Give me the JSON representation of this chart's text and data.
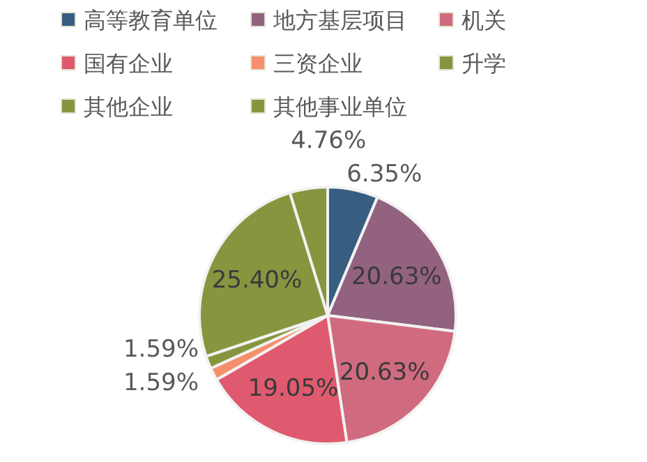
{
  "chart_data": {
    "type": "pie",
    "categories": [
      "高等教育单位",
      "地方基层项目",
      "机关",
      "国有企业",
      "三资企业",
      "升学",
      "其他企业",
      "其他事业单位"
    ],
    "values": [
      6.35,
      20.63,
      20.63,
      19.05,
      1.59,
      1.59,
      25.4,
      4.76
    ],
    "colors": [
      "#375d81",
      "#93627f",
      "#d06b7f",
      "#df5a6e",
      "#f68f6c",
      "#86963f",
      "#86963f",
      "#86963f"
    ],
    "value_labels": [
      "6.35%",
      "20.63%",
      "20.63%",
      "19.05%",
      "1.59%",
      "1.59%",
      "25.40%",
      "4.76%"
    ],
    "legend": "top"
  }
}
